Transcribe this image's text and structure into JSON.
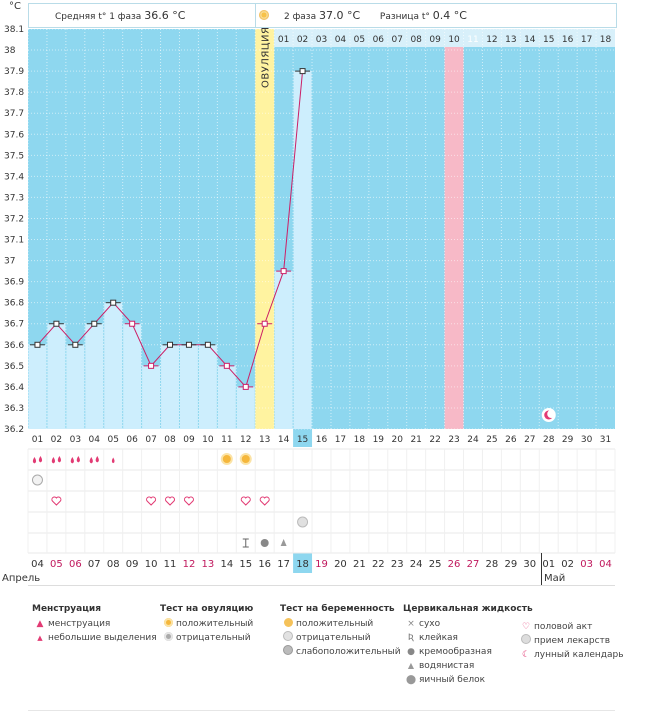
{
  "unit_label": "°C",
  "header": {
    "phase1_label": "Средняя t° 1 фаза",
    "phase1_value": "36.6 °C",
    "phase2_label": "2 фаза",
    "phase2_value": "37.0 °C",
    "diff_label": "Разница t°",
    "diff_value": "0.4 °C"
  },
  "ovulation_label": "ОВУЛЯЦИЯ",
  "cycle_days_top": [
    "01",
    "02",
    "03",
    "04",
    "05",
    "06",
    "07",
    "08",
    "09",
    "10",
    "11",
    "12",
    "13",
    "14",
    "15",
    "16",
    "17",
    "18"
  ],
  "cycle_days_bottom": [
    "01",
    "02",
    "03",
    "04",
    "05",
    "06",
    "07",
    "08",
    "09",
    "10",
    "11",
    "12",
    "13",
    "14",
    "15",
    "16",
    "17",
    "18",
    "19",
    "20",
    "21",
    "22",
    "23",
    "24",
    "25",
    "26",
    "27",
    "28",
    "29",
    "30",
    "31"
  ],
  "selected_cycle_day": "15",
  "calendar_dates": [
    "04",
    "05",
    "06",
    "07",
    "08",
    "09",
    "10",
    "11",
    "12",
    "13",
    "14",
    "15",
    "16",
    "17",
    "18",
    "19",
    "20",
    "21",
    "22",
    "23",
    "24",
    "25",
    "26",
    "27",
    "28",
    "29",
    "30",
    "01",
    "02",
    "03",
    "04"
  ],
  "calendar_date_colors": [
    "#333",
    "#c0185d",
    "#c0185d",
    "#333",
    "#333",
    "#333",
    "#333",
    "#333",
    "#c0185d",
    "#c0185d",
    "#333",
    "#333",
    "#333",
    "#333",
    "#333",
    "#c0185d",
    "#333",
    "#333",
    "#333",
    "#333",
    "#333",
    "#333",
    "#c0185d",
    "#c0185d",
    "#333",
    "#333",
    "#333",
    "#333",
    "#333",
    "#c0185d",
    "#c0185d"
  ],
  "selected_date": "18",
  "month_labels": [
    "Апрель",
    "Май"
  ],
  "chart_data": {
    "type": "line",
    "ylim": [
      36.2,
      38.1
    ],
    "y_ticks": [
      "36.2",
      "36.3",
      "36.4",
      "36.5",
      "36.6",
      "36.7",
      "36.8",
      "36.9",
      "37",
      "37.1",
      "37.2",
      "37.3",
      "37.4",
      "37.5",
      "37.6",
      "37.7",
      "37.8",
      "37.9",
      "38",
      "38.1"
    ],
    "x": [
      1,
      2,
      3,
      4,
      5,
      6,
      7,
      8,
      9,
      10,
      11,
      12,
      13,
      14,
      15
    ],
    "values": [
      36.6,
      36.7,
      36.6,
      36.7,
      36.8,
      36.7,
      36.5,
      36.6,
      36.6,
      36.6,
      36.5,
      36.4,
      36.7,
      36.95,
      37.9
    ],
    "phase1_days": 12,
    "ovulation_day": 13,
    "highlight_phase2_day": 11,
    "cycle_length": 31
  },
  "day_markers": {
    "menstruation": [
      1,
      2,
      3,
      4,
      5
    ],
    "menstruation_small": [
      5
    ],
    "ovulation_test_positive": [
      11,
      12
    ],
    "pregnancy_test_negative": [
      1
    ],
    "intercourse": [
      2,
      7,
      8,
      9,
      12,
      13
    ],
    "medication": [
      15
    ],
    "fluid_creamy": [
      13
    ],
    "fluid_sticky": [
      12
    ],
    "fluid_watery": [
      14
    ],
    "fluid_eggwhite": [],
    "lunar": [
      28
    ]
  },
  "legend": {
    "menstruation": {
      "title": "Менструация",
      "items": [
        "менструация",
        "небольшие выделения"
      ]
    },
    "ovulation_test": {
      "title": "Тест на овуляцию",
      "items": [
        "положительный",
        "отрицательный"
      ]
    },
    "pregnancy_test": {
      "title": "Тест на беременность",
      "items": [
        "положительный",
        "отрицательный",
        "слабоположительный"
      ]
    },
    "cervical_fluid": {
      "title": "Цервикальная жидкость",
      "items": [
        "сухо",
        "клейкая",
        "кремообразная",
        "водянистая",
        "яичный белок"
      ]
    },
    "other": {
      "items": [
        "половой акт",
        "прием лекарств",
        "лунный календарь"
      ]
    }
  },
  "colors": {
    "sky": "#8ed7ef",
    "bar": "#cdeefd",
    "ovulation": "#fff3a0",
    "highlight": "#f7b9c7",
    "line": "#cc1f66",
    "date_red": "#c0185d",
    "selected": "#8ed7ef"
  }
}
